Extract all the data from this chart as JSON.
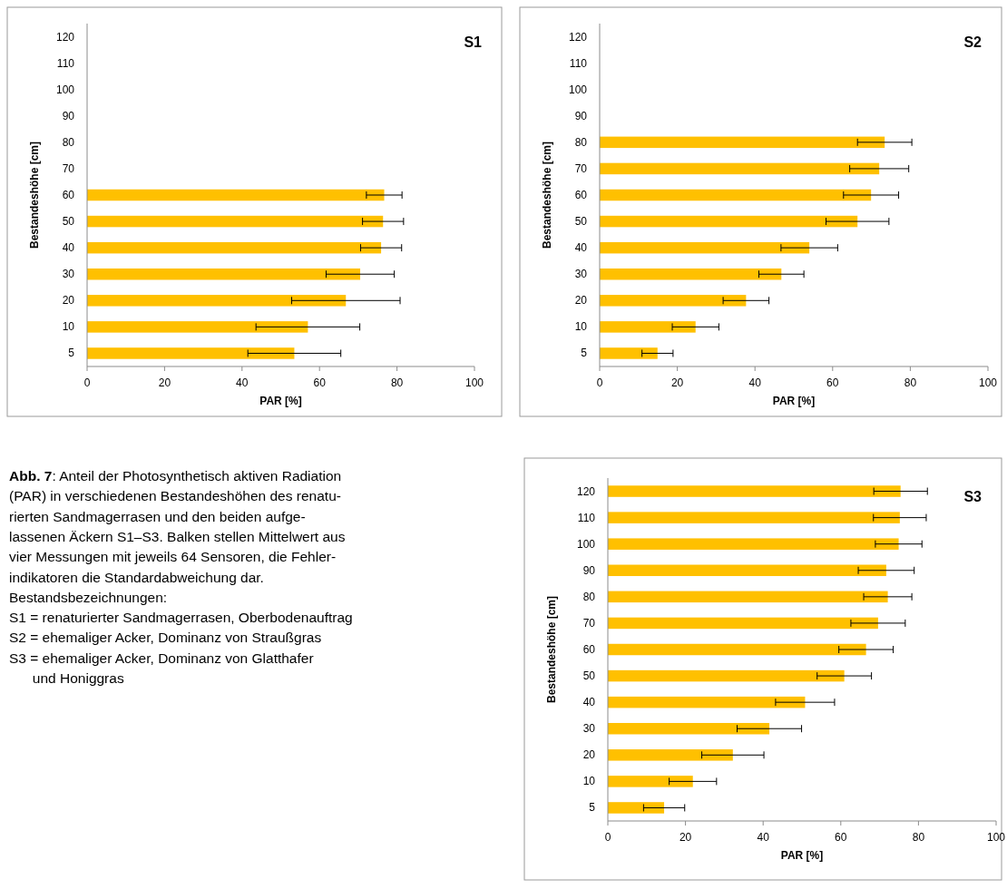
{
  "chart_data": [
    {
      "type": "bar",
      "orientation": "horizontal",
      "title": "S1",
      "xlabel": "PAR [%]",
      "ylabel": "Bestandeshöhe [cm]",
      "categories": [
        "120",
        "110",
        "100",
        "90",
        "80",
        "70",
        "60",
        "50",
        "40",
        "30",
        "20",
        "10",
        "5"
      ],
      "values": [
        null,
        null,
        null,
        null,
        null,
        null,
        76.7,
        76.4,
        75.9,
        70.5,
        66.8,
        57.0,
        53.5
      ],
      "errors": [
        null,
        null,
        null,
        null,
        null,
        null,
        4.6,
        5.3,
        5.3,
        8.8,
        14,
        13.4,
        12
      ],
      "color": "#ffc000",
      "xlim": [
        0,
        100
      ],
      "xticks": [
        0,
        20,
        40,
        60,
        80,
        100
      ],
      "grid": false
    },
    {
      "type": "bar",
      "orientation": "horizontal",
      "title": "S2",
      "xlabel": "PAR [%]",
      "ylabel": "Bestandeshöhe [cm]",
      "categories": [
        "120",
        "110",
        "100",
        "90",
        "80",
        "70",
        "60",
        "50",
        "40",
        "30",
        "20",
        "10",
        "5"
      ],
      "values": [
        null,
        null,
        null,
        null,
        73.4,
        72.0,
        69.9,
        66.4,
        54.0,
        46.8,
        37.7,
        24.7,
        14.9
      ],
      "errors": [
        null,
        null,
        null,
        null,
        7,
        7.6,
        7.1,
        8.1,
        7.3,
        5.8,
        5.9,
        6,
        4
      ],
      "color": "#ffc000",
      "xlim": [
        0,
        100
      ],
      "xticks": [
        0,
        20,
        40,
        60,
        80,
        100
      ],
      "grid": false
    },
    {
      "type": "bar",
      "orientation": "horizontal",
      "title": "S3",
      "xlabel": "PAR [%]",
      "ylabel": "Bestandeshöhe [cm]",
      "categories": [
        "120",
        "110",
        "100",
        "90",
        "80",
        "70",
        "60",
        "50",
        "40",
        "30",
        "20",
        "10",
        "5"
      ],
      "values": [
        75.4,
        75.2,
        74.9,
        71.7,
        72.1,
        69.6,
        66.5,
        60.9,
        50.8,
        41.6,
        32.2,
        21.9,
        14.5
      ],
      "errors": [
        6.9,
        6.8,
        6,
        7.2,
        6.2,
        7,
        7,
        7,
        7.6,
        8.3,
        8,
        6.1,
        5.3
      ],
      "color": "#ffc000",
      "xlim": [
        0,
        100
      ],
      "xticks": [
        0,
        20,
        40,
        60,
        80,
        100
      ],
      "grid": false
    },
    {
      "type": "other",
      "title": "Abb. 7",
      "annotations": [
        ": Anteil der Photosynthetisch aktiven Radiation",
        "(PAR) in verschiedenen Bestandeshöhen des renatu-",
        "rierten Sandmagerrasen und den beiden aufge-",
        "lassenen Äckern S1–S3. Balken stellen Mittelwert aus",
        "vier Messungen mit jeweils 64 Sensoren, die Fehler-",
        "indikatoren die Standardabweichung dar.",
        "Bestandsbezeichnungen:",
        "S1 = renaturierter Sandmagerrasen, Oberbodenauftrag",
        "S2 = ehemaliger Acker, Dominanz von Straußgras",
        "S3 = ehemaliger Acker, Dominanz von Glatthafer",
        "      und Honiggras"
      ]
    }
  ]
}
